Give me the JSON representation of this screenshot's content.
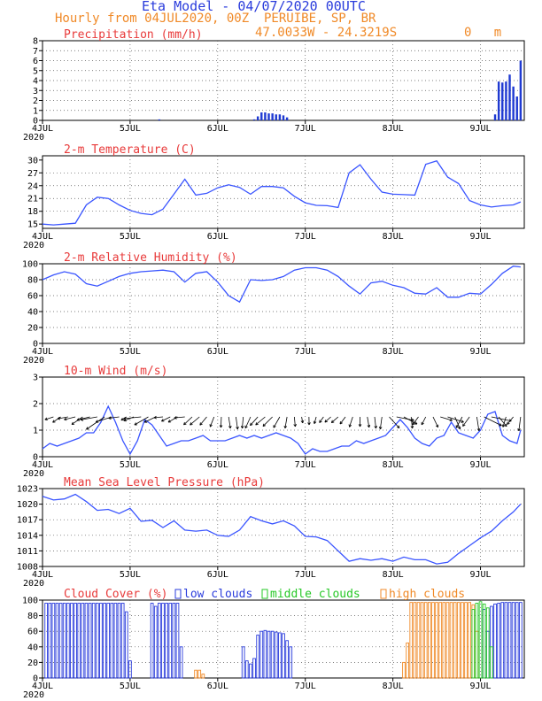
{
  "header": {
    "title": "Eta Model - 04/07/2020 00UTC",
    "line1": "Hourly from 04JUL2020, 00Z  PERUIBE, SP, BR",
    "line2": "47.0033W - 24.3219S         0   m"
  },
  "colors": {
    "line": "#3a55ff",
    "bar": "#1f3ad2",
    "panel_title": "#e83a3a",
    "low": "#2a3cdc",
    "middle": "#26c826",
    "high": "#f08a28",
    "arrow": "#000000"
  },
  "x_axis": {
    "ticks": [
      "4JUL",
      "5JUL",
      "6JUL",
      "7JUL",
      "8JUL",
      "9JUL"
    ],
    "year_label": "2020",
    "hours_total": 132
  },
  "chart_data": [
    {
      "type": "bar",
      "title": "Precipitation (mm/h)",
      "ylim": [
        0,
        8
      ],
      "yticks": [
        "0",
        "1",
        "2",
        "3",
        "4",
        "5",
        "6",
        "7",
        "8"
      ],
      "x": [
        32,
        58,
        59,
        60,
        61,
        62,
        63,
        64,
        65,
        66,
        67,
        124,
        125,
        126,
        127,
        128,
        129,
        130,
        131
      ],
      "values": [
        0.1,
        0.1,
        0.4,
        0.8,
        0.8,
        0.7,
        0.7,
        0.6,
        0.6,
        0.5,
        0.3,
        0.6,
        3.9,
        3.8,
        3.9,
        4.6,
        3.4,
        2.4,
        6.0
      ]
    },
    {
      "type": "line",
      "title": "2-m Temperature (C)",
      "ylim": [
        14,
        31
      ],
      "yticks": [
        "15",
        "18",
        "21",
        "24",
        "27",
        "30"
      ],
      "x": [
        0,
        3,
        6,
        9,
        12,
        15,
        18,
        21,
        24,
        27,
        30,
        33,
        36,
        39,
        42,
        45,
        48,
        51,
        54,
        57,
        58,
        60,
        63,
        66,
        69,
        72,
        75,
        78,
        81,
        84,
        87,
        90,
        93,
        96,
        99,
        102,
        105,
        108,
        111,
        114,
        117,
        120,
        123,
        126,
        129,
        131
      ],
      "values": [
        15.0,
        14.8,
        15.0,
        15.2,
        19.5,
        21.3,
        21.0,
        19.5,
        18.2,
        17.5,
        17.2,
        18.5,
        22.0,
        25.5,
        21.8,
        22.2,
        23.5,
        24.2,
        23.6,
        22.0,
        22.6,
        23.8,
        23.8,
        23.5,
        21.5,
        20.0,
        19.4,
        19.3,
        18.9,
        27.0,
        28.9,
        25.5,
        22.5,
        22.0,
        21.9,
        21.8,
        29.0,
        29.8,
        26.0,
        24.5,
        20.5,
        19.5,
        19.0,
        19.3,
        19.5,
        20.2
      ]
    },
    {
      "type": "line",
      "title": "2-m Relative Humidity (%)",
      "ylim": [
        0,
        100
      ],
      "yticks": [
        "0",
        "20",
        "40",
        "60",
        "80",
        "100"
      ],
      "x": [
        0,
        3,
        6,
        9,
        12,
        15,
        18,
        21,
        24,
        27,
        30,
        33,
        36,
        39,
        42,
        45,
        48,
        51,
        54,
        57,
        60,
        63,
        66,
        69,
        72,
        75,
        78,
        81,
        84,
        87,
        90,
        93,
        96,
        99,
        102,
        105,
        108,
        111,
        114,
        117,
        120,
        123,
        126,
        129,
        131
      ],
      "values": [
        80,
        86,
        90,
        87,
        75,
        72,
        78,
        84,
        88,
        90,
        91,
        92,
        90,
        77,
        88,
        90,
        77,
        60,
        52,
        80,
        79,
        80,
        84,
        92,
        95,
        95,
        92,
        84,
        72,
        62,
        76,
        78,
        73,
        70,
        63,
        62,
        70,
        58,
        58,
        63,
        62,
        74,
        88,
        97,
        96
      ]
    },
    {
      "type": "line",
      "title": "10-m Wind (m/s)",
      "ylim": [
        0,
        3
      ],
      "yticks": [
        "0",
        "1",
        "2",
        "3"
      ],
      "x": [
        0,
        2,
        4,
        6,
        8,
        10,
        12,
        14,
        16,
        18,
        20,
        22,
        24,
        26,
        28,
        30,
        32,
        34,
        36,
        38,
        40,
        42,
        44,
        46,
        48,
        50,
        52,
        54,
        56,
        58,
        60,
        62,
        64,
        66,
        68,
        70,
        72,
        74,
        76,
        78,
        80,
        82,
        84,
        86,
        88,
        90,
        92,
        94,
        96,
        98,
        100,
        102,
        104,
        106,
        108,
        110,
        112,
        114,
        116,
        118,
        120,
        122,
        124,
        126,
        128,
        130,
        131
      ],
      "values": [
        0.3,
        0.5,
        0.4,
        0.5,
        0.6,
        0.7,
        0.9,
        0.9,
        1.3,
        1.9,
        1.3,
        0.6,
        0.1,
        0.6,
        1.4,
        1.2,
        0.8,
        0.4,
        0.5,
        0.6,
        0.6,
        0.7,
        0.8,
        0.6,
        0.6,
        0.6,
        0.7,
        0.8,
        0.7,
        0.8,
        0.7,
        0.8,
        0.9,
        0.8,
        0.7,
        0.5,
        0.1,
        0.3,
        0.2,
        0.2,
        0.3,
        0.4,
        0.4,
        0.6,
        0.5,
        0.6,
        0.7,
        0.8,
        1.1,
        1.4,
        1.1,
        0.7,
        0.5,
        0.4,
        0.7,
        0.8,
        1.3,
        0.9,
        0.8,
        0.7,
        1.0,
        1.6,
        1.7,
        0.8,
        0.6,
        0.5,
        1.0
      ]
    },
    {
      "type": "line",
      "title": "Mean Sea Level Pressure (hPa)",
      "ylim": [
        1008,
        1023
      ],
      "yticks": [
        "1008",
        "1011",
        "1014",
        "1017",
        "1020",
        "1023"
      ],
      "x": [
        0,
        3,
        6,
        9,
        12,
        15,
        18,
        21,
        24,
        27,
        30,
        33,
        36,
        39,
        42,
        45,
        48,
        51,
        54,
        57,
        60,
        63,
        66,
        69,
        72,
        75,
        78,
        81,
        84,
        87,
        90,
        93,
        96,
        99,
        102,
        105,
        108,
        111,
        114,
        117,
        120,
        123,
        126,
        129,
        131
      ],
      "values": [
        1021.5,
        1020.8,
        1021.0,
        1021.9,
        1020.5,
        1018.8,
        1019.0,
        1018.2,
        1019.2,
        1016.7,
        1016.9,
        1015.5,
        1016.8,
        1015.0,
        1014.8,
        1015.0,
        1014.0,
        1013.8,
        1015.0,
        1017.6,
        1016.8,
        1016.2,
        1016.8,
        1015.8,
        1013.8,
        1013.7,
        1013.0,
        1011.0,
        1009.0,
        1009.5,
        1009.2,
        1009.5,
        1009.0,
        1009.8,
        1009.3,
        1009.3,
        1008.5,
        1008.8,
        1010.5,
        1012.0,
        1013.5,
        1014.8,
        1016.8,
        1018.5,
        1020.0
      ]
    },
    {
      "type": "bar",
      "title": "Cloud Cover (%)",
      "ylim": [
        0,
        100
      ],
      "yticks": [
        "0",
        "20",
        "40",
        "60",
        "80",
        "100"
      ],
      "legend": [
        "low clouds",
        "middle clouds",
        "high clouds"
      ],
      "series": [
        {
          "name": "low clouds",
          "x": [
            1,
            2,
            3,
            4,
            5,
            6,
            7,
            8,
            9,
            10,
            11,
            12,
            13,
            14,
            15,
            16,
            17,
            18,
            19,
            20,
            21,
            22,
            23,
            24,
            30,
            31,
            32,
            33,
            34,
            35,
            36,
            37,
            38,
            55,
            56,
            57,
            58,
            59,
            60,
            61,
            62,
            63,
            64,
            65,
            66,
            67,
            68,
            121,
            122,
            123,
            124,
            125,
            126,
            127,
            128,
            129,
            130,
            131
          ],
          "values": [
            96,
            96,
            96,
            96,
            96,
            96,
            96,
            96,
            96,
            96,
            96,
            96,
            96,
            96,
            96,
            96,
            96,
            96,
            96,
            96,
            96,
            96,
            85,
            22,
            96,
            92,
            96,
            96,
            96,
            96,
            96,
            96,
            40,
            40,
            22,
            18,
            25,
            55,
            60,
            61,
            60,
            60,
            59,
            58,
            57,
            48,
            40,
            88,
            60,
            92,
            95,
            96,
            97,
            97,
            97,
            97,
            97,
            97
          ]
        },
        {
          "name": "middle clouds",
          "x": [
            118,
            119,
            120,
            121,
            122,
            123
          ],
          "values": [
            88,
            96,
            98,
            95,
            90,
            40
          ]
        },
        {
          "name": "high clouds",
          "x": [
            42,
            43,
            44,
            99,
            100,
            101,
            102,
            103,
            104,
            105,
            106,
            107,
            108,
            109,
            110,
            111,
            112,
            113,
            114,
            115,
            116,
            117,
            118,
            119
          ],
          "values": [
            10,
            10,
            5,
            20,
            45,
            97,
            97,
            97,
            97,
            97,
            97,
            97,
            97,
            97,
            97,
            97,
            97,
            97,
            97,
            97,
            97,
            97,
            94,
            60
          ]
        }
      ]
    }
  ]
}
